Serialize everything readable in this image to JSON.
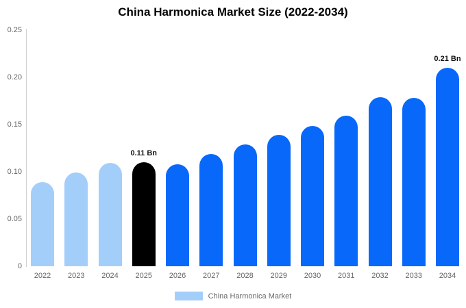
{
  "chart_data": {
    "type": "bar",
    "title": "China Harmonica Market Size (2022-2034)",
    "categories": [
      "2022",
      "2023",
      "2024",
      "2025",
      "2026",
      "2027",
      "2028",
      "2029",
      "2030",
      "2031",
      "2032",
      "2033",
      "2034"
    ],
    "values": [
      0.089,
      0.099,
      0.109,
      0.11,
      0.108,
      0.119,
      0.129,
      0.139,
      0.148,
      0.159,
      0.179,
      0.178,
      0.21
    ],
    "unit": "Bn",
    "color_roles": [
      "historical",
      "historical",
      "historical",
      "highlight",
      "forecast",
      "forecast",
      "forecast",
      "forecast",
      "forecast",
      "forecast",
      "forecast",
      "forecast",
      "forecast"
    ],
    "colors": {
      "historical": "#a4cefa",
      "highlight": "#000000",
      "forecast": "#0768fa"
    },
    "annotations": [
      {
        "category": "2025",
        "text": "0.11 Bn"
      },
      {
        "category": "2034",
        "text": "0.21 Bn"
      }
    ],
    "xlabel": "",
    "ylabel": "",
    "ylim": [
      0,
      0.25
    ],
    "yticks": [
      {
        "value": 0,
        "label": "0"
      },
      {
        "value": 0.05,
        "label": "0.05"
      },
      {
        "value": 0.1,
        "label": "0.10"
      },
      {
        "value": 0.15,
        "label": "0.15"
      },
      {
        "value": 0.2,
        "label": "0.20"
      },
      {
        "value": 0.25,
        "label": "0.25"
      }
    ],
    "grid": "off",
    "legend": {
      "label": "China Harmonica Market",
      "swatch_color": "#a4cefa",
      "position": "bottom"
    }
  }
}
